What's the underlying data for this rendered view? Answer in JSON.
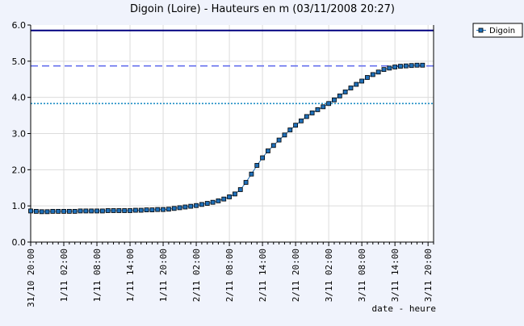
{
  "chart_data": {
    "type": "line",
    "title": "Digoin (Loire) - Hauteurs en m (03/11/2008 20:27)",
    "xlabel": "date - heure",
    "ylabel": "",
    "ylim": [
      0,
      6
    ],
    "y_ticks": [
      "0.0",
      "1.0",
      "2.0",
      "3.0",
      "4.0",
      "5.0",
      "6.0"
    ],
    "x_tick_labels": [
      "31/10 20:00",
      "1/11 02:00",
      "1/11 08:00",
      "1/11 14:00",
      "1/11 20:00",
      "2/11 02:00",
      "2/11 08:00",
      "2/11 14:00",
      "2/11 20:00",
      "3/11 02:00",
      "3/11 08:00",
      "3/11 14:00",
      "3/11 20:00"
    ],
    "x_start_hour": 0,
    "x_end_hour": 73,
    "x_tick_hours": [
      0,
      6,
      12,
      18,
      24,
      30,
      36,
      42,
      48,
      54,
      60,
      66,
      72
    ],
    "grid": true,
    "legend_position": "top-right",
    "reference_lines": [
      {
        "value": 5.85,
        "style": "solid",
        "color": "#000080"
      },
      {
        "value": 4.87,
        "style": "dashed",
        "color": "#6670ee"
      },
      {
        "value": 3.83,
        "style": "dotted",
        "color": "#1e8ec4"
      }
    ],
    "series": [
      {
        "name": "Digoin",
        "color": "#1f6fb8",
        "x": [
          0,
          1,
          2,
          3,
          4,
          5,
          6,
          7,
          8,
          9,
          10,
          11,
          12,
          13,
          14,
          15,
          16,
          17,
          18,
          19,
          20,
          21,
          22,
          23,
          24,
          25,
          26,
          27,
          28,
          29,
          30,
          31,
          32,
          33,
          34,
          35,
          36,
          37,
          38,
          39,
          40,
          41,
          42,
          43,
          44,
          45,
          46,
          47,
          48,
          49,
          50,
          51,
          52,
          53,
          54,
          55,
          56,
          57,
          58,
          59,
          60,
          61,
          62,
          63,
          64,
          65,
          66,
          67,
          68,
          69,
          70,
          71
        ],
        "y": [
          0.86,
          0.85,
          0.84,
          0.84,
          0.85,
          0.85,
          0.85,
          0.85,
          0.85,
          0.86,
          0.86,
          0.86,
          0.86,
          0.86,
          0.87,
          0.87,
          0.87,
          0.87,
          0.87,
          0.88,
          0.88,
          0.89,
          0.89,
          0.9,
          0.9,
          0.91,
          0.93,
          0.95,
          0.97,
          0.99,
          1.01,
          1.04,
          1.07,
          1.1,
          1.14,
          1.19,
          1.25,
          1.33,
          1.45,
          1.65,
          1.88,
          2.12,
          2.33,
          2.52,
          2.67,
          2.82,
          2.96,
          3.1,
          3.23,
          3.35,
          3.47,
          3.57,
          3.66,
          3.74,
          3.83,
          3.93,
          4.04,
          4.15,
          4.26,
          4.36,
          4.45,
          4.55,
          4.63,
          4.7,
          4.77,
          4.81,
          4.84,
          4.86,
          4.87,
          4.88,
          4.89,
          4.89
        ]
      }
    ]
  }
}
